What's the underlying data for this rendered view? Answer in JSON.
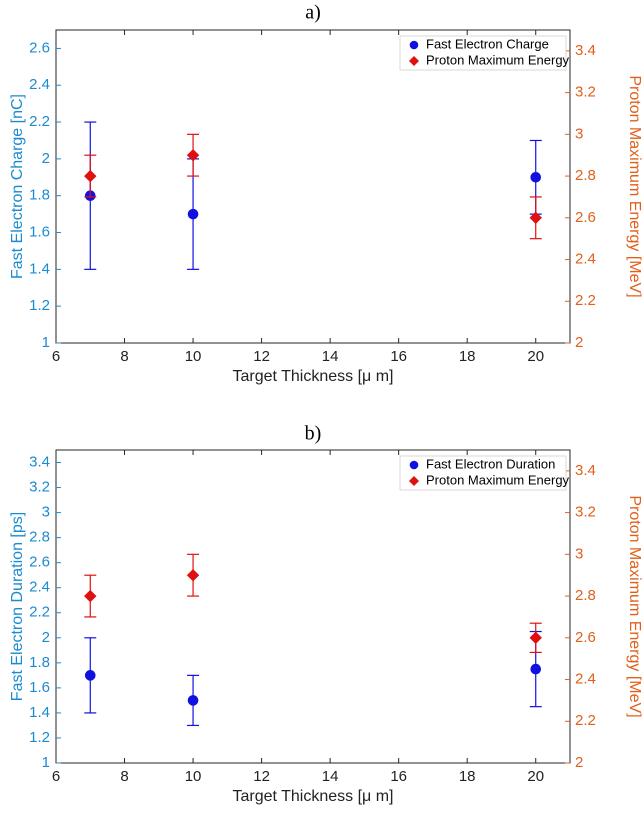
{
  "chart_data": [
    {
      "type": "scatter",
      "panel_label": "a)",
      "xlabel": "Target Thickness [μ m]",
      "ylabel_left": "Fast Electron Charge [nC]",
      "ylabel_right": "Proton Maximum Energy [MeV]",
      "xlim": [
        6,
        21
      ],
      "ylim_left": [
        1,
        2.7
      ],
      "ylim_right": [
        2,
        3.5
      ],
      "x_ticks": [
        "6",
        "8",
        "10",
        "12",
        "14",
        "16",
        "18",
        "20"
      ],
      "y_ticks_left": [
        "1",
        "1.2",
        "1.4",
        "1.6",
        "1.8",
        "2",
        "2.2",
        "2.4",
        "2.6"
      ],
      "y_ticks_right": [
        "2",
        "2.2",
        "2.4",
        "2.6",
        "2.8",
        "3",
        "3.2",
        "3.4"
      ],
      "legend_position": "top-right",
      "grid": false,
      "series": [
        {
          "name": "Fast Electron Charge",
          "axis": "left",
          "marker": "circle",
          "color": "#1010e0",
          "x": [
            7,
            10,
            20
          ],
          "y": [
            1.8,
            1.7,
            1.9
          ],
          "err_low": [
            1.4,
            1.4,
            1.7
          ],
          "err_high": [
            2.2,
            2.0,
            2.1
          ]
        },
        {
          "name": "Proton Maximum Energy",
          "axis": "right",
          "marker": "diamond",
          "color": "#e01010",
          "x": [
            7,
            10,
            20
          ],
          "y": [
            2.8,
            2.9,
            2.6
          ],
          "err_low": [
            2.7,
            2.8,
            2.5
          ],
          "err_high": [
            2.9,
            3.0,
            2.7
          ]
        }
      ]
    },
    {
      "type": "scatter",
      "panel_label": "b)",
      "xlabel": "Target Thickness [μ m]",
      "ylabel_left": "Fast Electron Duration [ps]",
      "ylabel_right": "Proton Maximum Energy [MeV]",
      "xlim": [
        6,
        21
      ],
      "ylim_left": [
        1,
        3.5
      ],
      "ylim_right": [
        2,
        3.5
      ],
      "x_ticks": [
        "6",
        "8",
        "10",
        "12",
        "14",
        "16",
        "18",
        "20"
      ],
      "y_ticks_left": [
        "1",
        "1.2",
        "1.4",
        "1.6",
        "1.8",
        "2",
        "2.2",
        "2.4",
        "2.6",
        "2.8",
        "3",
        "3.2",
        "3.4"
      ],
      "y_ticks_right": [
        "2",
        "2.2",
        "2.4",
        "2.6",
        "2.8",
        "3",
        "3.2",
        "3.4"
      ],
      "legend_position": "top-right",
      "grid": false,
      "series": [
        {
          "name": "Fast Electron Duration",
          "axis": "left",
          "marker": "circle",
          "color": "#1010e0",
          "x": [
            7,
            10,
            20
          ],
          "y": [
            1.7,
            1.5,
            1.75
          ],
          "err_low": [
            1.4,
            1.3,
            1.45
          ],
          "err_high": [
            2.0,
            1.7,
            2.05
          ]
        },
        {
          "name": "Proton Maximum Energy",
          "axis": "right",
          "marker": "diamond",
          "color": "#e01010",
          "x": [
            7,
            10,
            20
          ],
          "y": [
            2.8,
            2.9,
            2.6
          ],
          "err_low": [
            2.7,
            2.8,
            2.53
          ],
          "err_high": [
            2.9,
            3.0,
            2.67
          ]
        }
      ]
    }
  ],
  "colors": {
    "left_axis": "#1a8bd1",
    "right_axis": "#e0601c",
    "axis_frame": "#262626"
  }
}
